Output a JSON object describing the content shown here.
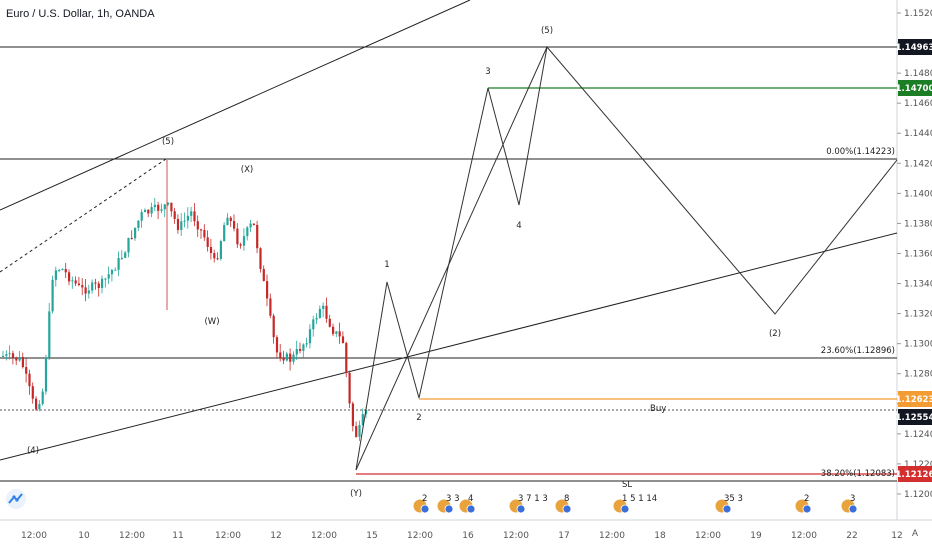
{
  "header": {
    "title": "Euro / U.S. Dollar, 1h, OANDA"
  },
  "axis": {
    "corner_label": "A",
    "price_ticks": [
      "1.15200",
      "1.15000",
      "1.14800",
      "1.14600",
      "1.14400",
      "1.14200",
      "1.14000",
      "1.13800",
      "1.13600",
      "1.13400",
      "1.13200",
      "1.13000",
      "1.12800",
      "1.12600",
      "1.12400",
      "1.12200",
      "1.12000"
    ],
    "time_ticks": [
      "12:00",
      "10",
      "12:00",
      "11",
      "12:00",
      "12",
      "12:00",
      "15",
      "12:00",
      "16",
      "12:00",
      "17",
      "12:00",
      "18",
      "12:00",
      "19",
      "12:00",
      "22",
      "12"
    ]
  },
  "chart_data": {
    "type": "candlestick",
    "title": "Euro / U.S. Dollar, 1h, OANDA",
    "y_range": [
      1.1188,
      1.1523
    ],
    "grid": false,
    "price_tags": [
      {
        "value": "1.14963",
        "color": "#131722",
        "text_color": "#ffffff"
      },
      {
        "value": "1.14700",
        "color": "#1b7e24",
        "text_color": "#ffffff"
      },
      {
        "value": "1.12623",
        "color": "#f39c34",
        "text_color": "#ffffff"
      },
      {
        "value": "1.12554",
        "color": "#131722",
        "text_color": "#ffffff"
      },
      {
        "value": "1.12126",
        "color": "#d32f2f",
        "text_color": "#ffffff"
      }
    ],
    "annotations": {
      "fib_0": "0.00%(1.14223)",
      "fib_236": "23.60%(1.12896)",
      "fib_382": "38.20%(1.12083)",
      "buy": "Buy",
      "sl": "SL",
      "wave_labels": [
        "(5)",
        "(X)",
        "(W)",
        "(4)",
        "(Y)",
        "1",
        "2",
        "3",
        "4",
        "(5)",
        "(2)"
      ]
    },
    "event_badges": [
      "2",
      "3 3",
      "4",
      "3 7 1 3",
      "8",
      "1 5 1 14",
      "35 3",
      "2",
      "3"
    ],
    "colors": {
      "up": "#26a69a",
      "down": "#c62828",
      "tp": "#1b7e24",
      "entry": "#f39c34",
      "sl": "#d32f2f",
      "line": "#222222"
    }
  }
}
